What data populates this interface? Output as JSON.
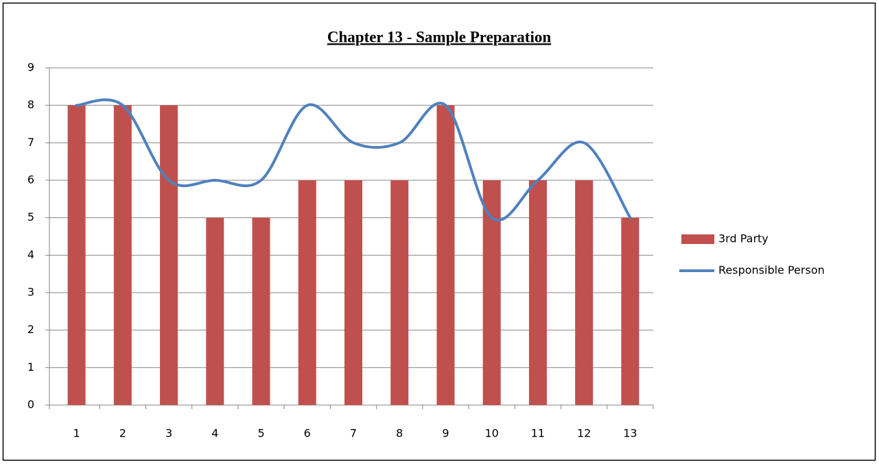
{
  "chart_data": {
    "type": "combo",
    "title": "Chapter 13 - Sample Preparation",
    "categories": [
      "1",
      "2",
      "3",
      "4",
      "5",
      "6",
      "7",
      "8",
      "9",
      "10",
      "11",
      "12",
      "13"
    ],
    "series": [
      {
        "name": "3rd Party",
        "type": "bar",
        "color": "#c0504d",
        "values": [
          8,
          8,
          8,
          5,
          5,
          6,
          6,
          6,
          8,
          6,
          6,
          6,
          5
        ]
      },
      {
        "name": "Responsible Person",
        "type": "line",
        "smooth": true,
        "color": "#4f81bd",
        "values": [
          8,
          8,
          6,
          6,
          6,
          8,
          7,
          7,
          8,
          5,
          6,
          7,
          5
        ]
      }
    ],
    "ylim": [
      0,
      9
    ],
    "yticks": [
      0,
      1,
      2,
      3,
      4,
      5,
      6,
      7,
      8,
      9
    ],
    "grid": true,
    "legend": "right"
  }
}
